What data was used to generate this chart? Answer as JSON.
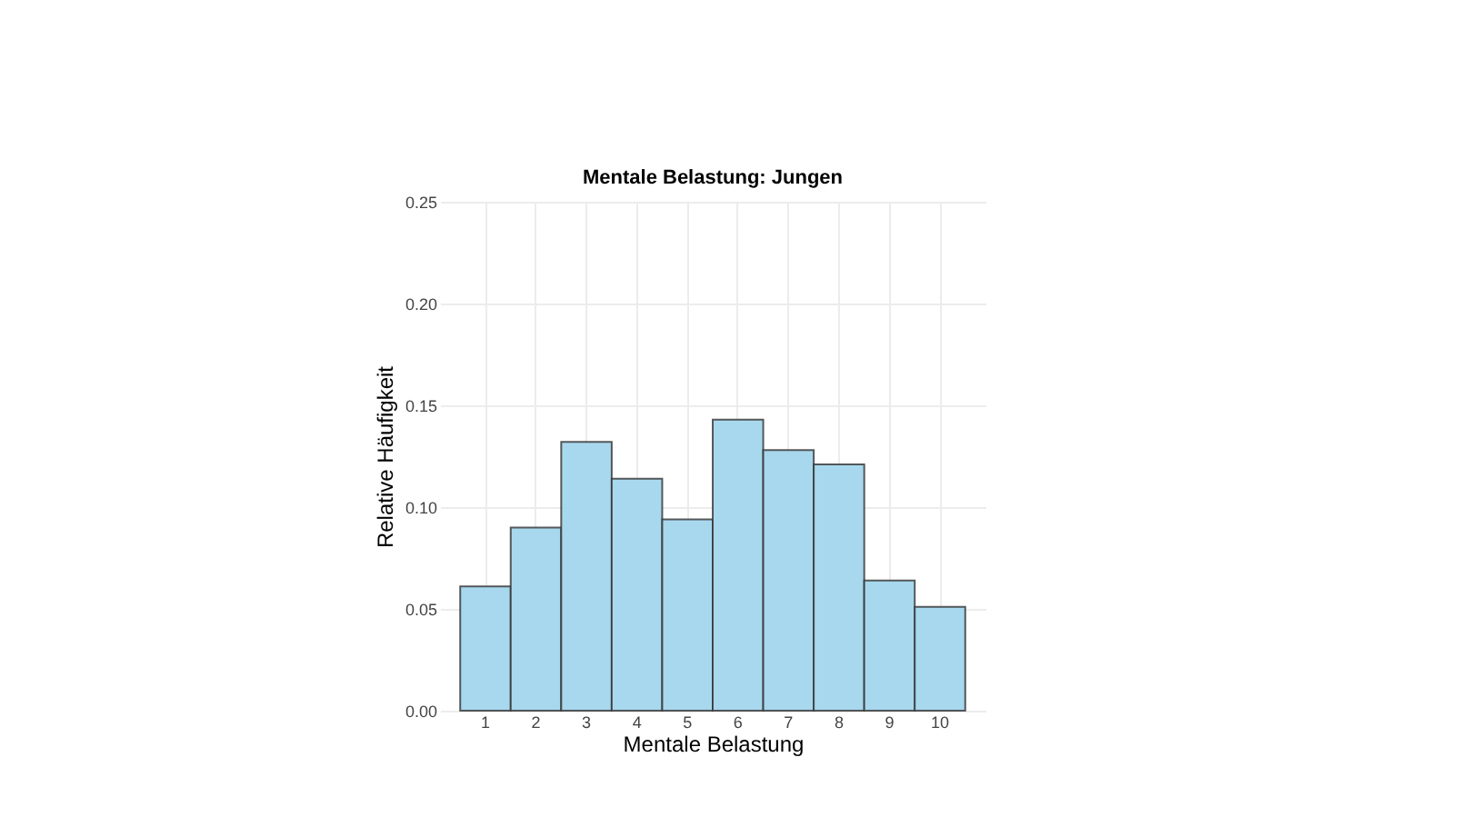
{
  "chart_data": {
    "type": "bar",
    "title": "Mentale Belastung: Jungen",
    "xlabel": "Mentale Belastung",
    "ylabel": "Relative Häufigkeit",
    "categories": [
      "1",
      "2",
      "3",
      "4",
      "5",
      "6",
      "7",
      "8",
      "9",
      "10"
    ],
    "values": [
      0.061,
      0.09,
      0.132,
      0.114,
      0.094,
      0.143,
      0.128,
      0.121,
      0.064,
      0.051
    ],
    "color": "#a8d8ee",
    "ylim": [
      0,
      0.25
    ],
    "yticks": [
      {
        "value": 0,
        "label": "0.00"
      },
      {
        "value": 0.05,
        "label": "0.05"
      },
      {
        "value": 0.1,
        "label": "0.10"
      },
      {
        "value": 0.15,
        "label": "0.15"
      },
      {
        "value": 0.2,
        "label": "0.20"
      },
      {
        "value": 0.25,
        "label": "0.25"
      }
    ],
    "grid": true
  }
}
